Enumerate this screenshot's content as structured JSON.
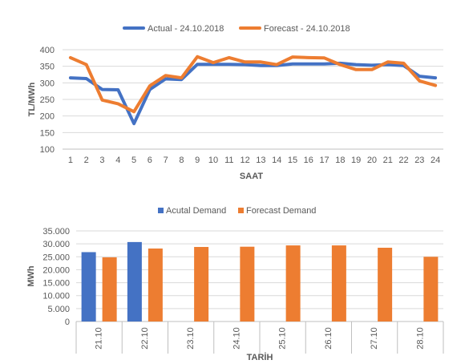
{
  "colors": {
    "actual": "#4472C4",
    "forecast": "#ED7D31",
    "grid": "#D9D9D9",
    "axis": "#BFBFBF",
    "text": "#595959"
  },
  "chart_data": [
    {
      "type": "line",
      "title": "",
      "xlabel": "SAAT",
      "ylabel": "TL/MWh",
      "x": [
        1,
        2,
        3,
        4,
        5,
        6,
        7,
        8,
        9,
        10,
        11,
        12,
        13,
        14,
        15,
        16,
        17,
        18,
        19,
        20,
        21,
        22,
        23,
        24
      ],
      "x_tick_labels": [
        "1",
        "2",
        "3",
        "4",
        "5",
        "6",
        "7",
        "8",
        "9",
        "10",
        "11",
        "12",
        "13",
        "14",
        "15",
        "16",
        "17",
        "18",
        "19",
        "20",
        "21",
        "22",
        "23",
        "24"
      ],
      "ylim": [
        100,
        400
      ],
      "y_ticks": [
        100,
        150,
        200,
        250,
        300,
        350,
        400
      ],
      "y_tick_labels": [
        "100",
        "150",
        "200",
        "250",
        "300",
        "350",
        "400"
      ],
      "grid": true,
      "legend_position": "top",
      "series": [
        {
          "name": "Actual - 24.10.2018",
          "color": "#4472C4",
          "values": [
            315,
            313,
            280,
            279,
            177,
            280,
            312,
            310,
            356,
            356,
            356,
            355,
            352,
            352,
            357,
            357,
            357,
            359,
            355,
            353,
            355,
            352,
            320,
            315
          ]
        },
        {
          "name": "Forecast - 24.10.2018",
          "color": "#ED7D31",
          "values": [
            376,
            355,
            248,
            237,
            213,
            291,
            322,
            315,
            379,
            361,
            376,
            363,
            363,
            355,
            378,
            376,
            375,
            355,
            340,
            340,
            363,
            359,
            306,
            292
          ]
        }
      ]
    },
    {
      "type": "bar",
      "title": "",
      "xlabel": "TARİH",
      "ylabel": "MWh",
      "categories": [
        "21.10",
        "22.10",
        "23.10",
        "24.10",
        "25.10",
        "26.10",
        "27.10",
        "28.10"
      ],
      "ylim": [
        0,
        35000
      ],
      "y_ticks": [
        0,
        5000,
        10000,
        15000,
        20000,
        25000,
        30000,
        35000
      ],
      "y_tick_labels": [
        "0",
        "5.000",
        "10.000",
        "15.000",
        "20.000",
        "25.000",
        "30.000",
        "35.000"
      ],
      "grid": true,
      "legend_position": "top",
      "series": [
        {
          "name": "Acutal Demand",
          "color": "#4472C4",
          "values": [
            26800,
            30700,
            null,
            null,
            null,
            null,
            null,
            null
          ]
        },
        {
          "name": "Forecast Demand",
          "color": "#ED7D31",
          "values": [
            24800,
            28200,
            28800,
            28900,
            29400,
            29400,
            28500,
            25000
          ]
        }
      ]
    }
  ]
}
